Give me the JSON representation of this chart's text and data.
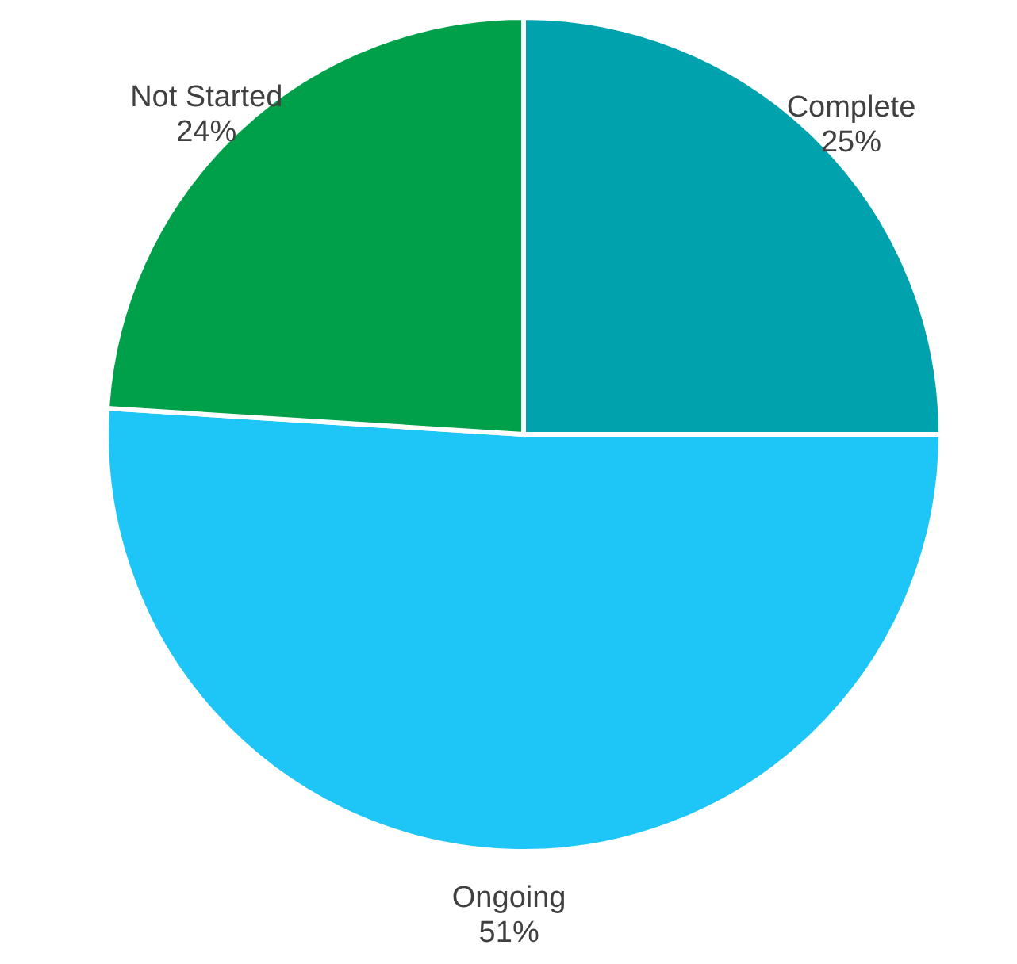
{
  "chart_data": {
    "type": "pie",
    "categories": [
      "Complete",
      "Ongoing",
      "Not Started"
    ],
    "values": [
      25,
      51,
      24
    ],
    "value_labels": [
      "25%",
      "51%",
      "24%"
    ],
    "colors": [
      "#00a2ad",
      "#1ec5f7",
      "#00a04a"
    ]
  }
}
